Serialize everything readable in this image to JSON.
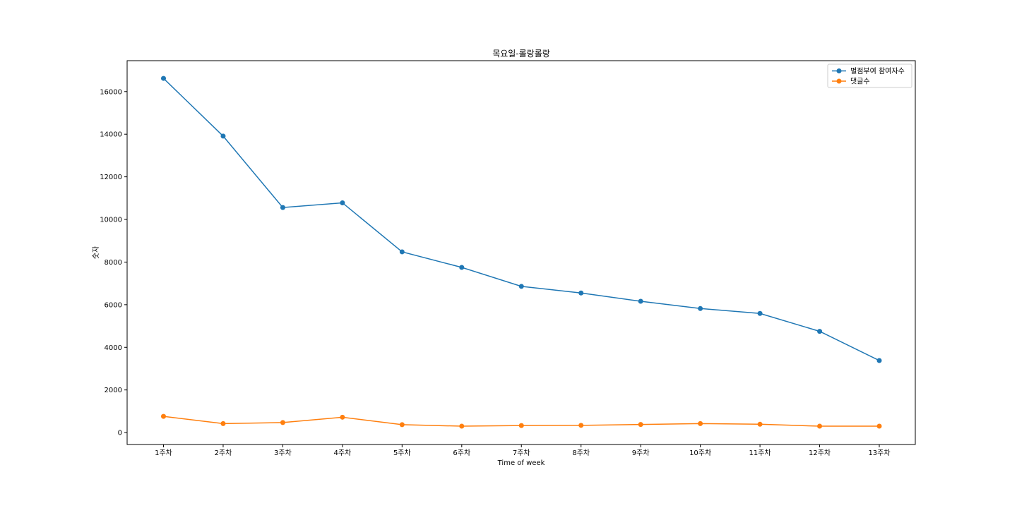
{
  "chart_data": {
    "type": "line",
    "title": "목요일-롤랑롤랑",
    "xlabel": "Time of week",
    "ylabel": "숫자",
    "categories": [
      "1주차",
      "2주차",
      "3주차",
      "4주차",
      "5주차",
      "6주차",
      "7주차",
      "8주차",
      "9주차",
      "10주차",
      "11주차",
      "12주차",
      "13주차"
    ],
    "series": [
      {
        "name": "별점부여 참여자수",
        "color": "#1f77b4",
        "values": [
          16620,
          13910,
          10560,
          10780,
          8480,
          7750,
          6860,
          6550,
          6160,
          5820,
          5590,
          4750,
          3380
        ]
      },
      {
        "name": "댓글수",
        "color": "#ff7f0e",
        "values": [
          760,
          420,
          470,
          720,
          370,
          300,
          330,
          340,
          380,
          420,
          390,
          300,
          300
        ]
      }
    ],
    "ylim": [
      -560,
      17450
    ],
    "yticks": [
      0,
      2000,
      4000,
      6000,
      8000,
      10000,
      12000,
      14000,
      16000
    ],
    "grid": false,
    "legend": "top-right"
  }
}
